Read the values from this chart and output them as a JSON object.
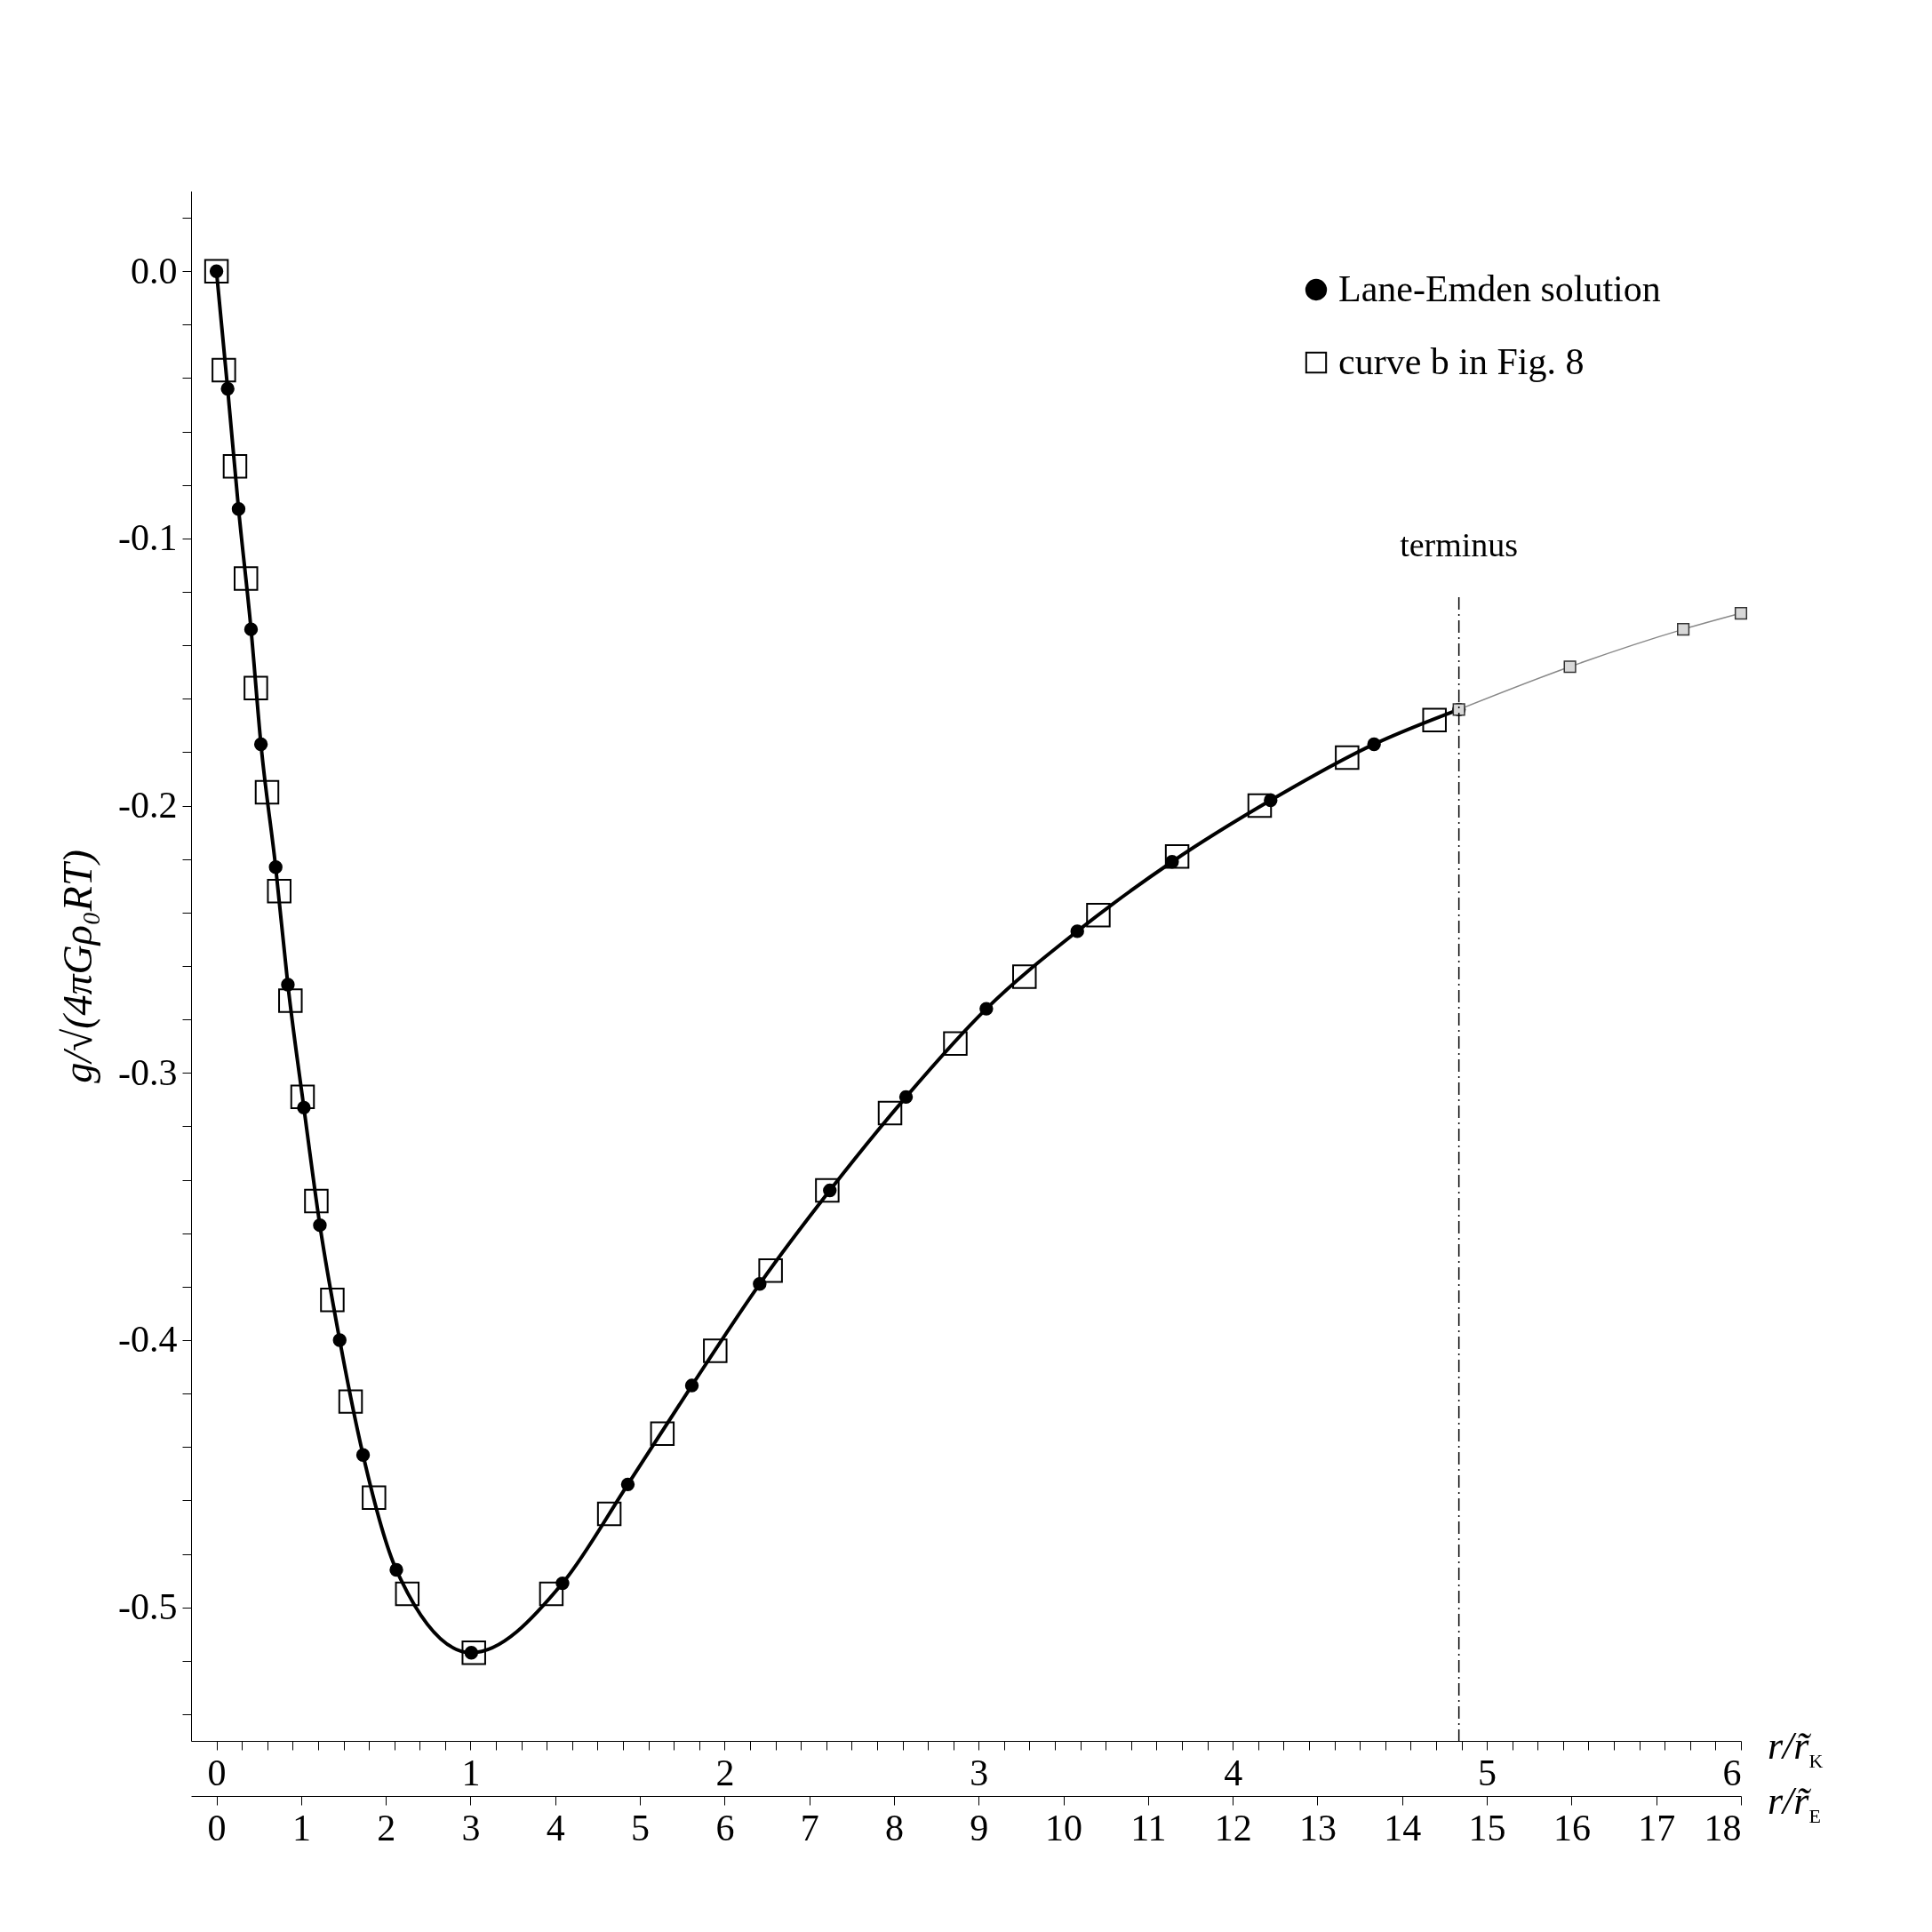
{
  "chart_data": {
    "type": "line",
    "xlabel": "r/r̃$_{K}$",
    "x2label": "r/r̃$_{E}$",
    "ylabel": "g/√(4πGρ₀RT)",
    "legend": "top right",
    "xlim": [
      -0.1,
      6
    ],
    "ylim": [
      -0.55,
      0.03
    ],
    "x2lim": [
      -0.3,
      18
    ],
    "xticks": [
      0,
      {
        "value": 0.1,
        "label": null
      },
      {
        "value": 0.2,
        "label": null
      },
      {
        "value": 0.3,
        "label": null
      },
      {
        "value": 0.4,
        "label": null
      },
      {
        "value": 0.5,
        "label": null
      },
      {
        "value": 0.6,
        "label": null
      },
      {
        "value": 0.7,
        "label": null
      },
      {
        "value": 0.8,
        "label": null
      },
      {
        "value": 0.9,
        "label": null
      },
      1,
      {
        "value": 1.1,
        "label": null
      },
      {
        "value": 1.2,
        "label": null
      },
      {
        "value": 1.3,
        "label": null
      },
      {
        "value": 1.4,
        "label": null
      },
      {
        "value": 1.5,
        "label": null
      },
      {
        "value": 1.6,
        "label": null
      },
      {
        "value": 1.7,
        "label": null
      },
      {
        "value": 1.8,
        "label": null
      },
      {
        "value": 1.9,
        "label": null
      },
      2,
      {
        "value": 2.1,
        "label": null
      },
      {
        "value": 2.2,
        "label": null
      },
      {
        "value": 2.3,
        "label": null
      },
      {
        "value": 2.4,
        "label": null
      },
      {
        "value": 2.5,
        "label": null
      },
      {
        "value": 2.6,
        "label": null
      },
      {
        "value": 2.7,
        "label": null
      },
      {
        "value": 2.8,
        "label": null
      },
      {
        "value": 2.9,
        "label": null
      },
      3,
      {
        "value": 3.1,
        "label": null
      },
      {
        "value": 3.2,
        "label": null
      },
      {
        "value": 3.3,
        "label": null
      },
      {
        "value": 3.4,
        "label": null
      },
      {
        "value": 3.5,
        "label": null
      },
      {
        "value": 3.6,
        "label": null
      },
      {
        "value": 3.7,
        "label": null
      },
      {
        "value": 3.8,
        "label": null
      },
      {
        "value": 3.9,
        "label": null
      },
      4,
      {
        "value": 4.1,
        "label": null
      },
      {
        "value": 4.2,
        "label": null
      },
      {
        "value": 4.3,
        "label": null
      },
      {
        "value": 4.4,
        "label": null
      },
      {
        "value": 4.5,
        "label": null
      },
      {
        "value": 4.6,
        "label": null
      },
      {
        "value": 4.7,
        "label": null
      },
      {
        "value": 4.8,
        "label": null
      },
      {
        "value": 4.9,
        "label": null
      },
      5,
      {
        "value": 5.1,
        "label": null
      },
      {
        "value": 5.2,
        "label": null
      },
      {
        "value": 5.3,
        "label": null
      },
      {
        "value": 5.4,
        "label": null
      },
      {
        "value": 5.5,
        "label": null
      },
      {
        "value": 5.6,
        "label": null
      },
      {
        "value": 5.7,
        "label": null
      },
      {
        "value": 5.8,
        "label": null
      },
      {
        "value": 5.9,
        "label": null
      },
      6
    ],
    "x2ticks": [
      0,
      1,
      2,
      3,
      4,
      5,
      6,
      7,
      8,
      9,
      10,
      11,
      12,
      13,
      14,
      15,
      16,
      17,
      18
    ],
    "yticks": [
      {
        "value": 0.02,
        "label": null
      },
      {
        "value": 0,
        "label": "0.0"
      },
      {
        "value": -0.02,
        "label": null
      },
      {
        "value": -0.04,
        "label": null
      },
      {
        "value": -0.06,
        "label": null
      },
      {
        "value": -0.08,
        "label": null
      },
      {
        "value": -0.1,
        "label": "-0.1"
      },
      {
        "value": -0.12,
        "label": null
      },
      {
        "value": -0.14,
        "label": null
      },
      {
        "value": -0.16,
        "label": null
      },
      {
        "value": -0.18,
        "label": null
      },
      {
        "value": -0.2,
        "label": "-0.2"
      },
      {
        "value": -0.22,
        "label": null
      },
      {
        "value": -0.24,
        "label": null
      },
      {
        "value": -0.26,
        "label": null
      },
      {
        "value": -0.28,
        "label": null
      },
      {
        "value": -0.3,
        "label": "-0.3"
      },
      {
        "value": -0.32,
        "label": null
      },
      {
        "value": -0.34,
        "label": null
      },
      {
        "value": -0.36,
        "label": null
      },
      {
        "value": -0.38,
        "label": null
      },
      {
        "value": -0.4,
        "label": "-0.4"
      },
      {
        "value": -0.42,
        "label": null
      },
      {
        "value": -0.44,
        "label": null
      },
      {
        "value": -0.46,
        "label": null
      },
      {
        "value": -0.48,
        "label": null
      },
      {
        "value": -0.5,
        "label": "-0.5"
      },
      {
        "value": -0.52,
        "label": null
      },
      {
        "value": -0.54,
        "label": null
      }
    ],
    "ref_lines": [
      {
        "axis": "x",
        "value": 4.89,
        "label": "terminus",
        "line_style": "dashed",
        "color": "#000000"
      }
    ],
    "series": [
      {
        "name": "Lane-Emden solution",
        "marker": "circle",
        "color": "#000000",
        "x": [
          0,
          0.044,
          0.087,
          0.136,
          0.175,
          0.233,
          0.281,
          0.344,
          0.407,
          0.485,
          0.577,
          0.708,
          1.003,
          1.362,
          1.619,
          1.871,
          2.138,
          2.414,
          2.714,
          3.03,
          3.388,
          3.761,
          4.149,
          4.556,
          4.89
        ],
        "values": [
          0,
          -0.044,
          -0.089,
          -0.134,
          -0.177,
          -0.223,
          -0.267,
          -0.313,
          -0.357,
          -0.4,
          -0.443,
          -0.486,
          -0.517,
          -0.491,
          -0.454,
          -0.417,
          -0.379,
          -0.344,
          -0.309,
          -0.276,
          -0.247,
          -0.221,
          -0.198,
          -0.177,
          -0.164
        ]
      },
      {
        "marker": "square",
        "color": "#888888",
        "x": [
          4.89,
          5.327,
          5.773,
          6
        ],
        "values": [
          -0.164,
          -0.148,
          -0.134,
          -0.128
        ]
      },
      {
        "name": "curve  b  in Fig. 8",
        "type": "scatter",
        "marker": "square",
        "color": "#000000",
        "x": [
          0,
          0.029,
          0.073,
          0.116,
          0.155,
          0.199,
          0.247,
          0.291,
          0.339,
          0.393,
          0.456,
          0.528,
          0.62,
          0.751,
          1.013,
          1.318,
          1.546,
          1.755,
          1.963,
          2.181,
          2.404,
          2.651,
          2.908,
          3.18,
          3.471,
          3.781,
          4.106,
          4.45,
          4.794
        ],
        "values": [
          0,
          -0.037,
          -0.073,
          -0.115,
          -0.156,
          -0.195,
          -0.232,
          -0.273,
          -0.309,
          -0.348,
          -0.385,
          -0.423,
          -0.459,
          -0.495,
          -0.517,
          -0.495,
          -0.465,
          -0.435,
          -0.404,
          -0.374,
          -0.344,
          -0.315,
          -0.289,
          -0.264,
          -0.241,
          -0.219,
          -0.2,
          -0.182,
          -0.168
        ]
      }
    ]
  }
}
